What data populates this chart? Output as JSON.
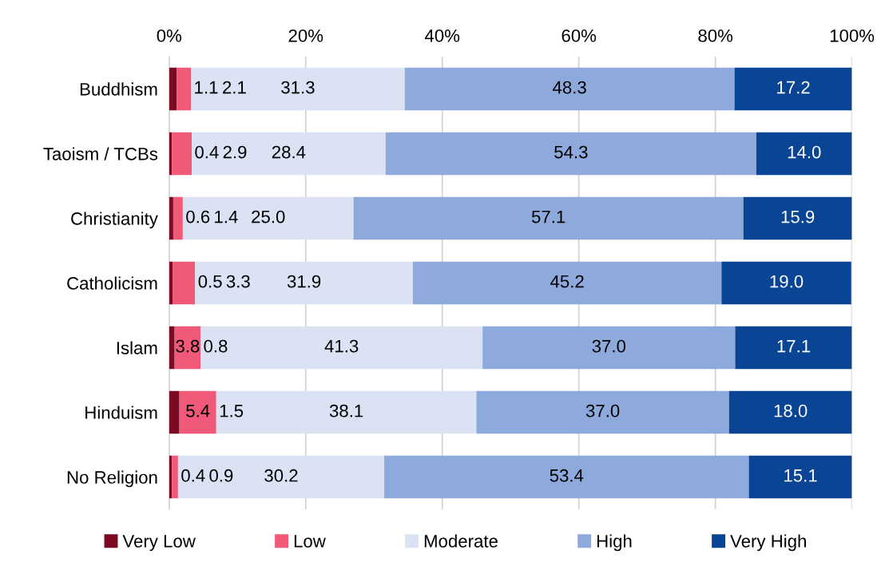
{
  "chart_data": {
    "type": "bar",
    "orientation": "horizontal",
    "stacked": true,
    "grid": "x",
    "legend": "bottom",
    "categories": [
      "Buddhism",
      "Taoism / TCBs",
      "Christianity",
      "Catholicism",
      "Islam",
      "Hinduism",
      "No Religion"
    ],
    "xlim": [
      0,
      100
    ],
    "xticks": [
      {
        "value": 0,
        "label": "0%"
      },
      {
        "value": 20,
        "label": "20%"
      },
      {
        "value": 40,
        "label": "40%"
      },
      {
        "value": 60,
        "label": "60%"
      },
      {
        "value": 80,
        "label": "80%"
      },
      {
        "value": 100,
        "label": "100%"
      }
    ],
    "series": [
      {
        "name": "Very Low",
        "color": "#7b0a23",
        "values": [
          1.1,
          0.4,
          0.6,
          0.5,
          0.8,
          1.5,
          0.4
        ],
        "value_labels": [
          "1.1",
          "0.4",
          "0.6",
          "0.5",
          "0.8",
          "1.5",
          "0.4"
        ]
      },
      {
        "name": "Low",
        "color": "#f05a78",
        "values": [
          2.1,
          2.9,
          1.4,
          3.3,
          3.8,
          5.4,
          0.9
        ],
        "value_labels": [
          "2.1",
          "2.9",
          "1.4",
          "3.3",
          "3.8",
          "5.4",
          "0.9"
        ]
      },
      {
        "name": "Moderate",
        "color": "#dae2f3",
        "values": [
          31.3,
          28.4,
          25.0,
          31.9,
          41.3,
          38.1,
          30.2
        ],
        "value_labels": [
          "31.3",
          "28.4",
          "25.0",
          "31.9",
          "41.3",
          "38.1",
          "30.2"
        ]
      },
      {
        "name": "High",
        "color": "#8eaadc",
        "values": [
          48.3,
          54.3,
          57.1,
          45.2,
          37.0,
          37.0,
          53.4
        ],
        "value_labels": [
          "48.3",
          "54.3",
          "57.1",
          "45.2",
          "37.0",
          "37.0",
          "53.4"
        ]
      },
      {
        "name": "Very High",
        "color": "#0a4595",
        "values": [
          17.2,
          14.0,
          15.9,
          19.0,
          17.1,
          18.0,
          15.1
        ],
        "value_labels": [
          "17.2",
          "14.0",
          "15.9",
          "19.0",
          "17.1",
          "18.0",
          "15.1"
        ]
      }
    ]
  }
}
